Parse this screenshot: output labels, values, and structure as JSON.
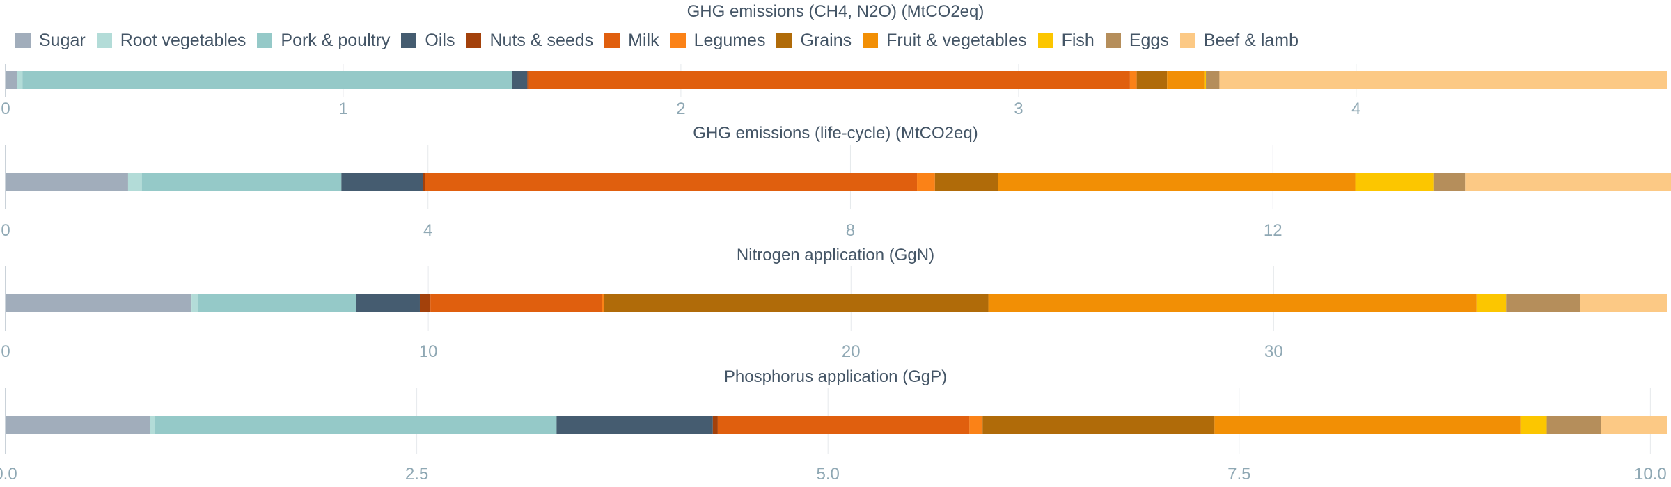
{
  "legend": {
    "items": [
      {
        "label": "Sugar",
        "color": "#a1adbb"
      },
      {
        "label": "Root vegetables",
        "color": "#b3dcd8"
      },
      {
        "label": "Pork & poultry",
        "color": "#95c9c8"
      },
      {
        "label": "Oils",
        "color": "#455c70"
      },
      {
        "label": "Nuts & seeds",
        "color": "#a3410b"
      },
      {
        "label": "Milk",
        "color": "#e05f0e"
      },
      {
        "label": "Legumes",
        "color": "#fb8217"
      },
      {
        "label": "Grains",
        "color": "#b06b09"
      },
      {
        "label": "Fruit & vegetables",
        "color": "#f28f05"
      },
      {
        "label": "Fish",
        "color": "#fcc600"
      },
      {
        "label": "Eggs",
        "color": "#b58e5b"
      },
      {
        "label": "Beef & lamb",
        "color": "#fcc985"
      }
    ]
  },
  "chart_data": [
    {
      "type": "bar",
      "orientation": "horizontal",
      "stacked": true,
      "title": "GHG emissions (CH4, N2O) (MtCO2eq)",
      "xlim": [
        0,
        4.92
      ],
      "ticks": [
        0,
        1,
        2,
        3,
        4
      ],
      "tick_labels": [
        "0",
        "1",
        "2",
        "3",
        "4"
      ],
      "segments": [
        {
          "name": "Sugar",
          "value": 0.035
        },
        {
          "name": "Root vegetables",
          "value": 0.015
        },
        {
          "name": "Pork & poultry",
          "value": 1.45
        },
        {
          "name": "Oils",
          "value": 0.045
        },
        {
          "name": "Nuts & seeds",
          "value": 0.005
        },
        {
          "name": "Milk",
          "value": 1.78
        },
        {
          "name": "Legumes",
          "value": 0.02
        },
        {
          "name": "Grains",
          "value": 0.09
        },
        {
          "name": "Fruit & vegetables",
          "value": 0.11
        },
        {
          "name": "Fish",
          "value": 0.005
        },
        {
          "name": "Eggs",
          "value": 0.04
        },
        {
          "name": "Beef & lamb",
          "value": 1.325
        }
      ]
    },
    {
      "type": "bar",
      "orientation": "horizontal",
      "stacked": true,
      "title": "GHG emissions (life-cycle) (MtCO2eq)",
      "xlim": [
        0,
        15.73
      ],
      "ticks": [
        0,
        4,
        8,
        12
      ],
      "tick_labels": [
        "0",
        "4",
        "8",
        "12"
      ],
      "segments": [
        {
          "name": "Sugar",
          "value": 1.16
        },
        {
          "name": "Root vegetables",
          "value": 0.13
        },
        {
          "name": "Pork & poultry",
          "value": 1.89
        },
        {
          "name": "Oils",
          "value": 0.77
        },
        {
          "name": "Nuts & seeds",
          "value": 0.02
        },
        {
          "name": "Milk",
          "value": 4.66
        },
        {
          "name": "Legumes",
          "value": 0.17
        },
        {
          "name": "Grains",
          "value": 0.6
        },
        {
          "name": "Fruit & vegetables",
          "value": 3.38
        },
        {
          "name": "Fish",
          "value": 0.74
        },
        {
          "name": "Eggs",
          "value": 0.3
        },
        {
          "name": "Beef & lamb",
          "value": 1.95
        }
      ]
    },
    {
      "type": "bar",
      "orientation": "horizontal",
      "stacked": true,
      "title": "Nitrogen application (GgN)",
      "xlim": [
        0,
        39.3
      ],
      "ticks": [
        0,
        10,
        20,
        30
      ],
      "tick_labels": [
        "0",
        "10",
        "20",
        "30"
      ],
      "segments": [
        {
          "name": "Sugar",
          "value": 4.4
        },
        {
          "name": "Root vegetables",
          "value": 0.15
        },
        {
          "name": "Pork & poultry",
          "value": 3.75
        },
        {
          "name": "Oils",
          "value": 1.5
        },
        {
          "name": "Nuts & seeds",
          "value": 0.25
        },
        {
          "name": "Milk",
          "value": 4.05
        },
        {
          "name": "Legumes",
          "value": 0.05
        },
        {
          "name": "Grains",
          "value": 9.1
        },
        {
          "name": "Fruit & vegetables",
          "value": 11.55
        },
        {
          "name": "Fish",
          "value": 0.7
        },
        {
          "name": "Eggs",
          "value": 1.75
        },
        {
          "name": "Beef & lamb",
          "value": 2.05
        }
      ]
    },
    {
      "type": "bar",
      "orientation": "horizontal",
      "stacked": true,
      "title": "Phosphorus application (GgP)",
      "xlim": [
        0,
        10.1
      ],
      "ticks": [
        0,
        2.5,
        5,
        7.5,
        10
      ],
      "tick_labels": [
        "0.0",
        "2.5",
        "5.0",
        "7.5",
        "10.0"
      ],
      "segments": [
        {
          "name": "Sugar",
          "value": 0.88
        },
        {
          "name": "Root vegetables",
          "value": 0.03
        },
        {
          "name": "Pork & poultry",
          "value": 2.44
        },
        {
          "name": "Oils",
          "value": 0.95
        },
        {
          "name": "Nuts & seeds",
          "value": 0.03
        },
        {
          "name": "Milk",
          "value": 1.53
        },
        {
          "name": "Legumes",
          "value": 0.08
        },
        {
          "name": "Grains",
          "value": 1.41
        },
        {
          "name": "Fruit & vegetables",
          "value": 1.86
        },
        {
          "name": "Fish",
          "value": 0.16
        },
        {
          "name": "Eggs",
          "value": 0.33
        },
        {
          "name": "Beef & lamb",
          "value": 0.4
        }
      ]
    }
  ]
}
